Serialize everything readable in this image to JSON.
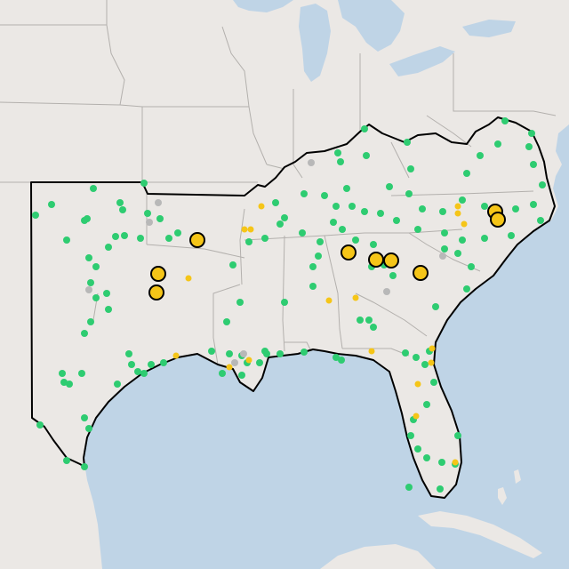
{
  "map": {
    "colors": {
      "water": "#bfd4e6",
      "land": "#ebe8e5",
      "state_border": "#b3b0ad",
      "region_outline": "#000000",
      "green_marker": "#2ecc71",
      "yellow_marker": "#f5c518",
      "gray_marker": "#b8b8b8",
      "marker_stroke": "#000000"
    },
    "legend": null
  }
}
